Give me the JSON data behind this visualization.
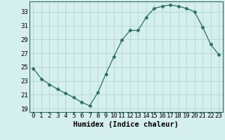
{
  "x": [
    0,
    1,
    2,
    3,
    4,
    5,
    6,
    7,
    8,
    9,
    10,
    11,
    12,
    13,
    14,
    15,
    16,
    17,
    18,
    19,
    20,
    21,
    22,
    23
  ],
  "y": [
    24.8,
    23.3,
    22.5,
    21.8,
    21.2,
    20.6,
    19.9,
    19.4,
    21.3,
    24.0,
    26.5,
    28.9,
    30.3,
    30.3,
    32.2,
    33.5,
    33.8,
    34.0,
    33.8,
    33.5,
    33.0,
    30.8,
    28.3,
    26.8
  ],
  "line_color": "#2d6e62",
  "marker": "D",
  "marker_size": 2.5,
  "bg_color": "#d5eeee",
  "grid_color": "#b8d8d8",
  "xlabel": "Humidex (Indice chaleur)",
  "xlim": [
    -0.5,
    23.5
  ],
  "ylim": [
    18.5,
    34.5
  ],
  "yticks": [
    19,
    21,
    23,
    25,
    27,
    29,
    31,
    33
  ],
  "xticks": [
    0,
    1,
    2,
    3,
    4,
    5,
    6,
    7,
    8,
    9,
    10,
    11,
    12,
    13,
    14,
    15,
    16,
    17,
    18,
    19,
    20,
    21,
    22,
    23
  ],
  "tick_label_fontsize": 6.5,
  "xlabel_fontsize": 7.5
}
